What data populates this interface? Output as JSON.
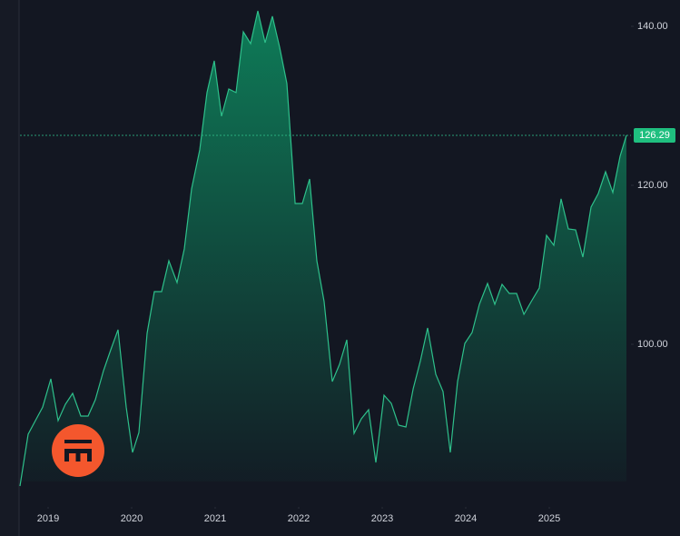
{
  "chart_data": {
    "type": "area",
    "x": [
      2018.663,
      2018.761,
      2018.848,
      2018.935,
      2019.033,
      2019.12,
      2019.207,
      2019.293,
      2019.391,
      2019.478,
      2019.565,
      2019.663,
      2019.75,
      2019.837,
      2019.935,
      2020.011,
      2020.087,
      2020.185,
      2020.272,
      2020.359,
      2020.446,
      2020.543,
      2020.63,
      2020.717,
      2020.815,
      2020.902,
      2020.989,
      2021.076,
      2021.163,
      2021.25,
      2021.337,
      2021.424,
      2021.511,
      2021.598,
      2021.685,
      2021.772,
      2021.859,
      2021.957,
      2022.043,
      2022.13,
      2022.217,
      2022.304,
      2022.402,
      2022.489,
      2022.576,
      2022.663,
      2022.75,
      2022.837,
      2022.924,
      2023.022,
      2023.109,
      2023.196,
      2023.283,
      2023.37,
      2023.457,
      2023.543,
      2023.641,
      2023.728,
      2023.815,
      2023.902,
      2023.989,
      2024.076,
      2024.163,
      2024.261,
      2024.348,
      2024.435,
      2024.522,
      2024.609,
      2024.696,
      2024.783,
      2024.88,
      2024.967,
      2025.054,
      2025.141,
      2025.228,
      2025.315,
      2025.402,
      2025.5,
      2025.587,
      2025.674,
      2025.761,
      2025.848,
      2025.924
    ],
    "series": [
      {
        "color": "#2ec08b",
        "values": [
          82.17,
          88.69,
          90.4,
          92.11,
          95.66,
          90.4,
          92.46,
          93.83,
          90.97,
          90.97,
          93.03,
          96.69,
          99.31,
          101.83,
          92.11,
          86.4,
          88.91,
          101.37,
          106.63,
          106.63,
          110.51,
          107.77,
          112.0,
          119.54,
          124.46,
          131.66,
          135.66,
          128.69,
          132.11,
          131.66,
          139.31,
          137.83,
          141.94,
          137.94,
          141.26,
          137.37,
          132.8,
          117.71,
          117.71,
          120.8,
          110.51,
          105.37,
          95.31,
          97.49,
          100.57,
          88.8,
          90.63,
          91.77,
          85.14,
          93.6,
          92.57,
          89.83,
          89.6,
          94.4,
          97.94,
          102.06,
          96.23,
          94.06,
          86.4,
          95.31,
          100.11,
          101.49,
          105.03,
          107.66,
          105.03,
          107.54,
          106.4,
          106.4,
          103.77,
          105.37,
          107.09,
          113.71,
          112.46,
          118.29,
          114.51,
          114.4,
          110.97,
          117.26,
          118.97,
          121.71,
          119.09,
          123.66,
          126.29
        ]
      }
    ],
    "last_value_label": "126.29",
    "xlim": [
      2018.663,
      2025.978
    ],
    "xticks": [
      2019,
      2020,
      2021,
      2022,
      2023,
      2024,
      2025
    ],
    "ylim": [
      80.46,
      143.31
    ],
    "yticks": [
      {
        "value": 100,
        "label": "100.00"
      },
      {
        "value": 120,
        "label": "120.00"
      },
      {
        "value": 140,
        "label": "140.00"
      }
    ]
  }
}
